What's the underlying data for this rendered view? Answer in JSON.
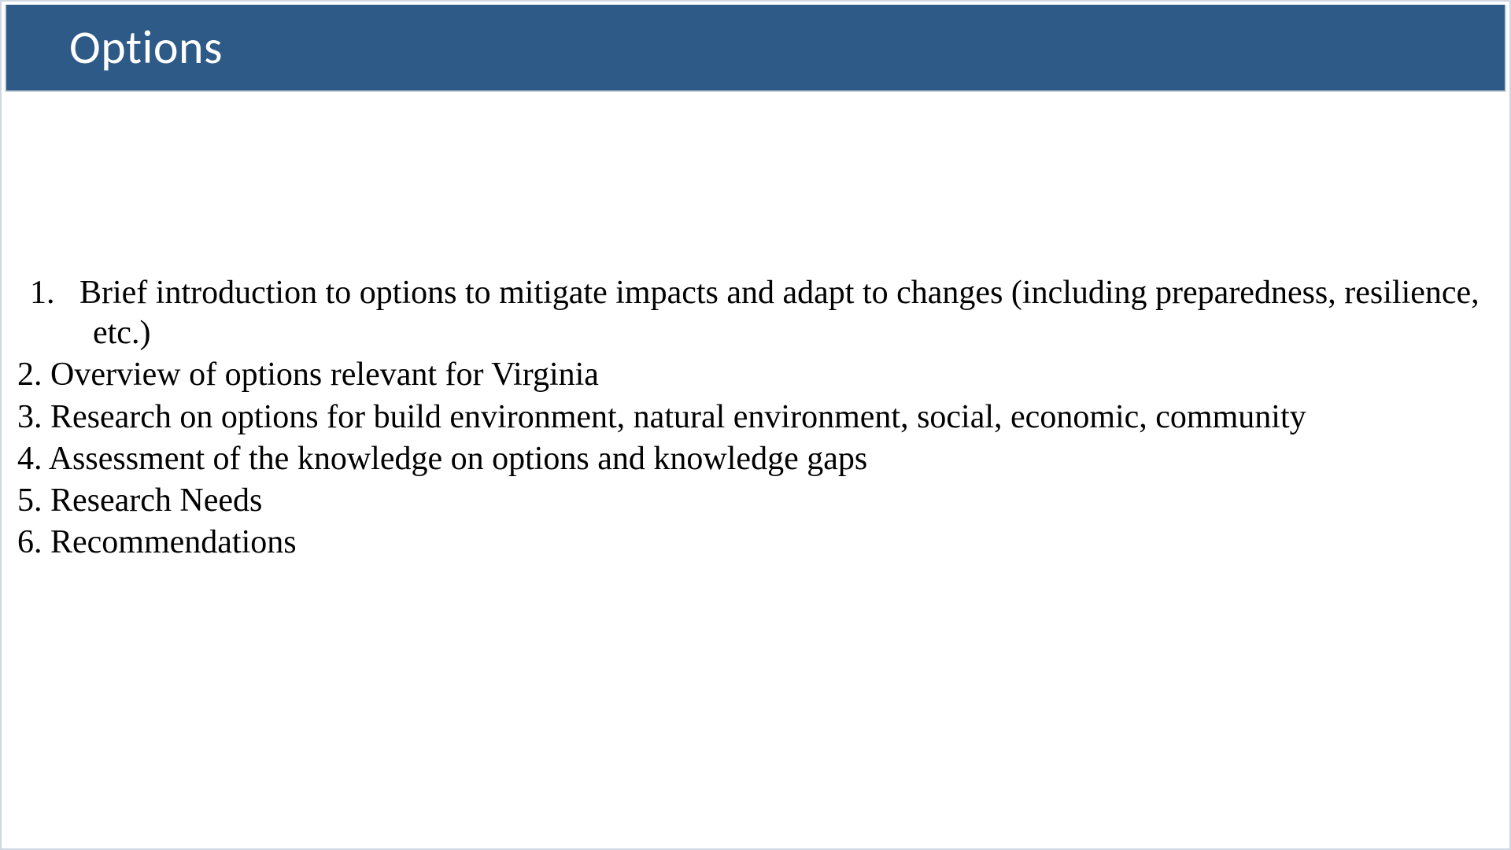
{
  "title": "Options",
  "colors": {
    "title_bar_bg": "#2e5a87",
    "title_text": "#ffffff",
    "body_bg": "#ffffff",
    "body_text": "#000000",
    "border": "#cbd5e0"
  },
  "typography": {
    "title_font": "Calibri",
    "title_size_pt": 40,
    "body_font": "Times New Roman",
    "body_size_pt": 28
  },
  "list": {
    "type": "ordered",
    "items": [
      "Brief introduction to options to mitigate impacts and adapt to changes (including preparedness, resilience, etc.)",
      "Overview of options relevant for Virginia",
      "Research on options for build environment, natural environment, social, economic, community",
      "Assessment of the knowledge on options and knowledge gaps",
      "Research Needs",
      "Recommendations"
    ]
  }
}
